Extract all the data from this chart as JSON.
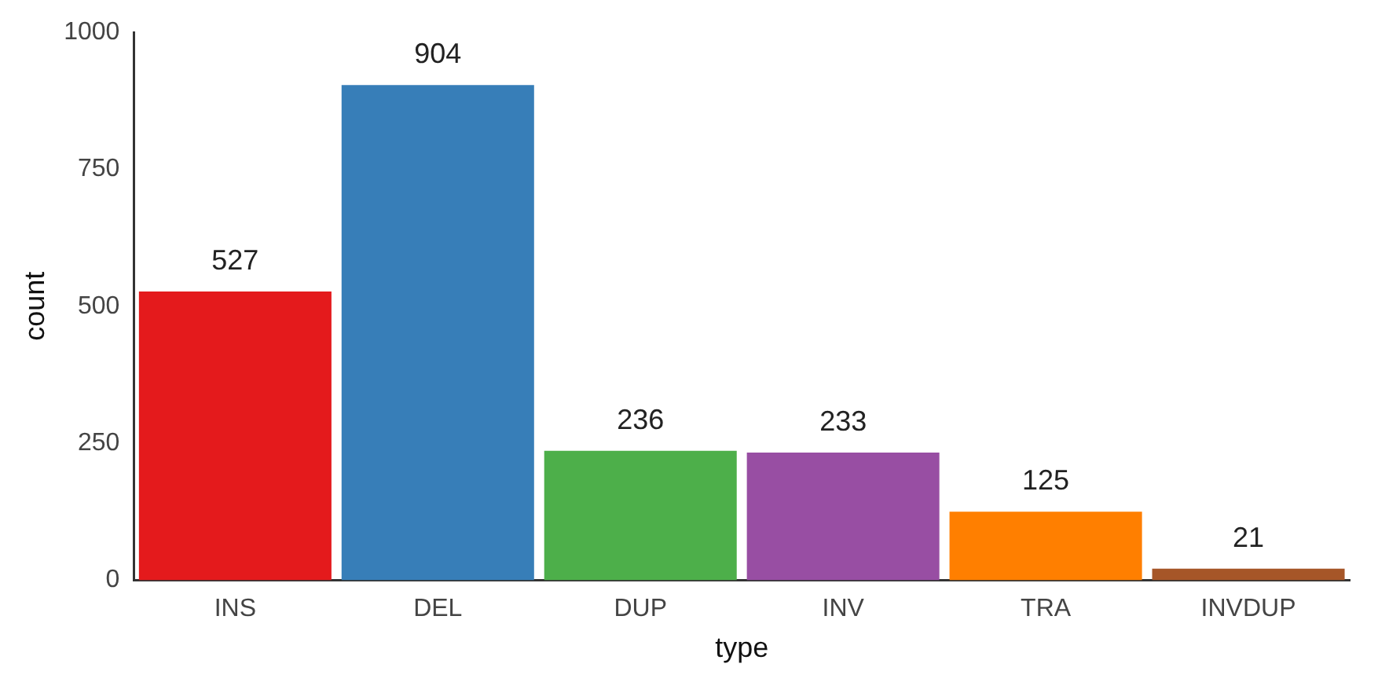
{
  "chart_data": {
    "type": "bar",
    "xlabel": "type",
    "ylabel": "count",
    "categories": [
      "INS",
      "DEL",
      "DUP",
      "INV",
      "TRA",
      "INVDUP"
    ],
    "values": [
      527,
      904,
      236,
      233,
      125,
      21
    ],
    "colors": [
      "#e41a1c",
      "#377eb8",
      "#4daf4a",
      "#984ea3",
      "#ff7f00",
      "#a65628"
    ],
    "ylim": [
      0,
      1000
    ],
    "yticks": [
      0,
      250,
      500,
      750,
      1000
    ],
    "grid": false,
    "legend": false,
    "data_labels": true
  }
}
